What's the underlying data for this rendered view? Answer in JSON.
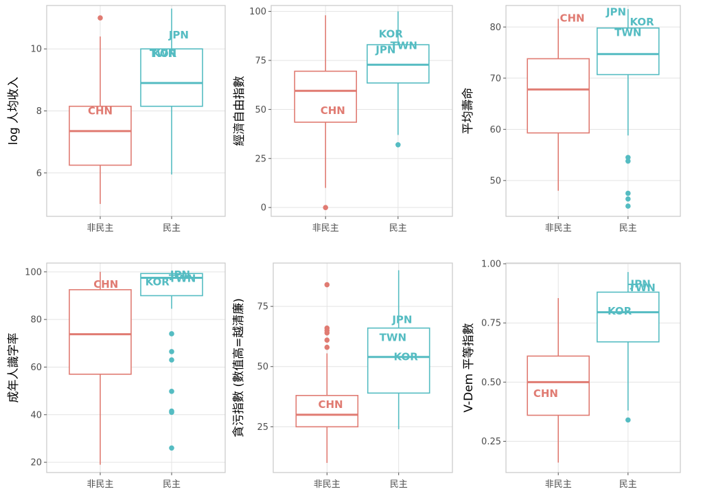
{
  "colors": {
    "non_democracy": "#E07B72",
    "democracy": "#55BCC2",
    "grid": "#e3e3e3",
    "frame": "#c8c8c8"
  },
  "chart_data": [
    {
      "type": "box",
      "ylabel": "log 人均收入",
      "categories": [
        "非民主",
        "民主"
      ],
      "ylim": [
        4.6,
        11.4
      ],
      "yticks": [
        6,
        8,
        10
      ],
      "boxes": [
        {
          "q1": 6.25,
          "median": 7.35,
          "q3": 8.15,
          "whisker_low": 5.0,
          "whisker_high": 10.4,
          "outliers": [
            11.0
          ]
        },
        {
          "q1": 8.15,
          "median": 8.9,
          "q3": 10.0,
          "whisker_low": 5.95,
          "whisker_high": 11.3,
          "outliers": []
        }
      ],
      "labels": [
        {
          "text": "CHN",
          "group": 0,
          "y": 8.0,
          "dx": 0.0
        },
        {
          "text": "JPN",
          "group": 1,
          "y": 10.45,
          "dx": 0.1
        },
        {
          "text": "TWN",
          "group": 1,
          "y": 9.85,
          "dx": -0.12
        },
        {
          "text": "KOR",
          "group": 1,
          "y": 9.85,
          "dx": -0.1
        }
      ]
    },
    {
      "type": "box",
      "ylabel": "經濟自由指數",
      "categories": [
        "非民主",
        "民主"
      ],
      "ylim": [
        -4.5,
        103
      ],
      "yticks": [
        0,
        25,
        50,
        75,
        100
      ],
      "boxes": [
        {
          "q1": 43.5,
          "median": 59.5,
          "q3": 69.5,
          "whisker_low": 10.0,
          "whisker_high": 98.0,
          "outliers": [
            0
          ]
        },
        {
          "q1": 63.5,
          "median": 72.8,
          "q3": 83.0,
          "whisker_low": 37.0,
          "whisker_high": 100.0,
          "outliers": [
            32
          ]
        }
      ],
      "labels": [
        {
          "text": "CHN",
          "group": 0,
          "y": 49.5,
          "dx": 0.1
        },
        {
          "text": "KOR",
          "group": 1,
          "y": 88.5,
          "dx": -0.1
        },
        {
          "text": "TWN",
          "group": 1,
          "y": 82.5,
          "dx": 0.08
        },
        {
          "text": "JPN",
          "group": 1,
          "y": 80.5,
          "dx": -0.17
        }
      ]
    },
    {
      "type": "box",
      "ylabel": "平均壽命",
      "categories": [
        "非民主",
        "民主"
      ],
      "ylim": [
        43.0,
        84.2
      ],
      "yticks": [
        50,
        60,
        70,
        80
      ],
      "boxes": [
        {
          "q1": 59.3,
          "median": 67.8,
          "q3": 73.8,
          "whisker_low": 48.0,
          "whisker_high": 81.6,
          "outliers": []
        },
        {
          "q1": 70.7,
          "median": 74.7,
          "q3": 79.8,
          "whisker_low": 58.8,
          "whisker_high": 83.5,
          "outliers": [
            54.5,
            53.8,
            47.5,
            46.4,
            45.0
          ]
        }
      ],
      "labels": [
        {
          "text": "CHN",
          "group": 0,
          "y": 81.7,
          "dx": 0.2
        },
        {
          "text": "JPN",
          "group": 1,
          "y": 82.9,
          "dx": -0.17
        },
        {
          "text": "KOR",
          "group": 1,
          "y": 81.0,
          "dx": 0.2
        },
        {
          "text": "TWN",
          "group": 1,
          "y": 78.9,
          "dx": 0.0
        }
      ]
    },
    {
      "type": "box",
      "ylabel": "成年人識字率",
      "categories": [
        "非民主",
        "民主"
      ],
      "ylim": [
        15.7,
        103.7
      ],
      "yticks": [
        20,
        40,
        60,
        80,
        100
      ],
      "boxes": [
        {
          "q1": 57.0,
          "median": 73.8,
          "q3": 92.5,
          "whisker_low": 19.0,
          "whisker_high": 100.0,
          "outliers": []
        },
        {
          "q1": 90.0,
          "median": 97.5,
          "q3": 99.3,
          "whisker_low": 84.5,
          "whisker_high": 100.0,
          "outliers": [
            74.0,
            66.5,
            63.0,
            49.8,
            41.5,
            41.0,
            26.0
          ]
        }
      ],
      "labels": [
        {
          "text": "CHN",
          "group": 0,
          "y": 94.8,
          "dx": 0.08
        },
        {
          "text": "JPN",
          "group": 1,
          "y": 98.8,
          "dx": 0.12
        },
        {
          "text": "TWN",
          "group": 1,
          "y": 97.2,
          "dx": 0.15
        },
        {
          "text": "KOR",
          "group": 1,
          "y": 95.8,
          "dx": -0.2
        }
      ]
    },
    {
      "type": "box",
      "ylabel": "貪污指數 (數值高=越清廉)",
      "categories": [
        "非民主",
        "民主"
      ],
      "ylim": [
        6.0,
        93.0
      ],
      "yticks": [
        25,
        50,
        75
      ],
      "boxes": [
        {
          "q1": 25.0,
          "median": 30.0,
          "q3": 38.0,
          "whisker_low": 10.0,
          "whisker_high": 55.5,
          "outliers": [
            84.0,
            66.0,
            65.0,
            64.0,
            61.0,
            58.0
          ]
        },
        {
          "q1": 39.0,
          "median": 54.0,
          "q3": 66.0,
          "whisker_low": 24.0,
          "whisker_high": 90.0,
          "outliers": []
        }
      ],
      "labels": [
        {
          "text": "CHN",
          "group": 0,
          "y": 34.2,
          "dx": 0.05
        },
        {
          "text": "JPN",
          "group": 1,
          "y": 69.5,
          "dx": 0.05
        },
        {
          "text": "TWN",
          "group": 1,
          "y": 62.0,
          "dx": -0.08
        },
        {
          "text": "KOR",
          "group": 1,
          "y": 54.0,
          "dx": 0.1
        }
      ]
    },
    {
      "type": "box",
      "ylabel": "V-Dem 平等指數",
      "categories": [
        "非民主",
        "民主"
      ],
      "ylim": [
        0.118,
        1.003
      ],
      "yticks": [
        0.25,
        0.5,
        0.75,
        1.0
      ],
      "ytick_labels": [
        "0.25",
        "0.50",
        "0.75",
        "1.00"
      ],
      "boxes": [
        {
          "q1": 0.36,
          "median": 0.5,
          "q3": 0.61,
          "whisker_low": 0.16,
          "whisker_high": 0.855,
          "outliers": []
        },
        {
          "q1": 0.67,
          "median": 0.795,
          "q3": 0.88,
          "whisker_low": 0.38,
          "whisker_high": 0.965,
          "outliers": [
            0.34
          ]
        }
      ],
      "labels": [
        {
          "text": "CHN",
          "group": 0,
          "y": 0.451,
          "dx": -0.18
        },
        {
          "text": "JPN",
          "group": 1,
          "y": 0.915,
          "dx": 0.18
        },
        {
          "text": "TWN",
          "group": 1,
          "y": 0.898,
          "dx": 0.2
        },
        {
          "text": "KOR",
          "group": 1,
          "y": 0.8,
          "dx": -0.12
        }
      ]
    }
  ]
}
